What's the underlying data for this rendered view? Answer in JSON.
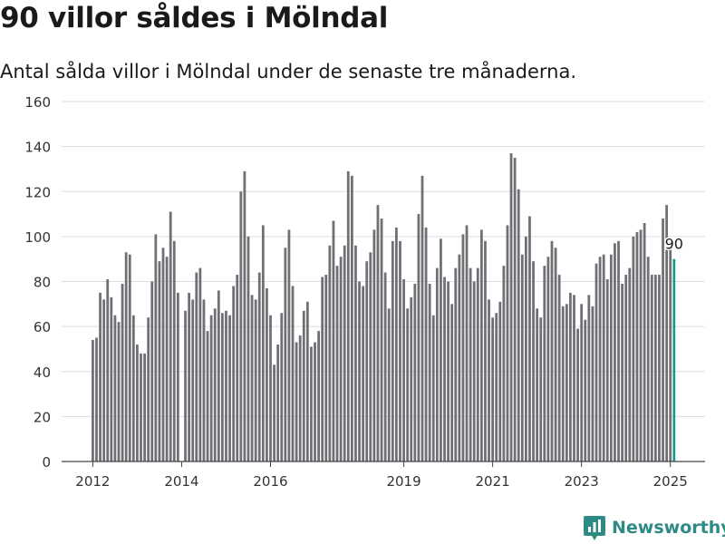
{
  "header": {
    "title": "90 villor såldes i Mölndal",
    "subtitle": "Antal sålda villor i Mölndal under de senaste tre månaderna."
  },
  "brand": {
    "name": "Newsworthy",
    "color": "#2d8a85",
    "icon": "newsworthy-logo-icon"
  },
  "colors": {
    "bar": "#6f6f76",
    "highlight": "#1e9a8d",
    "grid": "#dddddd",
    "axis": "#444444"
  },
  "chart_data": {
    "type": "bar",
    "title": "90 villor såldes i Mölndal",
    "subtitle": "Antal sålda villor i Mölndal under de senaste tre månaderna.",
    "xlabel": "",
    "ylabel": "",
    "ylim": [
      0,
      160
    ],
    "yticks": [
      0,
      20,
      40,
      60,
      80,
      100,
      120,
      140,
      160
    ],
    "xticks": [
      "2012",
      "2014",
      "2016",
      "2019",
      "2021",
      "2023",
      "2025"
    ],
    "grid": true,
    "x_start": "2012-01",
    "x_end": "2025-01",
    "highlight_label": "90",
    "values": [
      54,
      55,
      75,
      72,
      81,
      73,
      65,
      62,
      79,
      93,
      92,
      65,
      52,
      48,
      48,
      64,
      80,
      101,
      89,
      95,
      91,
      111,
      98,
      75,
      null,
      67,
      75,
      72,
      84,
      86,
      72,
      58,
      65,
      68,
      76,
      66,
      67,
      65,
      78,
      83,
      120,
      129,
      100,
      74,
      72,
      84,
      105,
      77,
      65,
      43,
      52,
      66,
      95,
      103,
      78,
      53,
      56,
      67,
      71,
      51,
      53,
      58,
      82,
      83,
      96,
      107,
      87,
      91,
      96,
      129,
      127,
      96,
      80,
      78,
      89,
      93,
      103,
      114,
      108,
      84,
      68,
      98,
      104,
      98,
      81,
      68,
      73,
      79,
      110,
      127,
      104,
      79,
      65,
      86,
      99,
      82,
      80,
      70,
      86,
      92,
      101,
      105,
      86,
      80,
      86,
      103,
      98,
      72,
      64,
      66,
      71,
      87,
      105,
      137,
      135,
      121,
      92,
      100,
      109,
      89,
      68,
      64,
      87,
      91,
      98,
      95,
      83,
      69,
      70,
      75,
      74,
      59,
      70,
      63,
      74,
      69,
      88,
      91,
      92,
      81,
      92,
      97,
      98,
      79,
      83,
      86,
      100,
      102,
      103,
      106,
      91,
      83,
      83,
      83,
      108,
      114,
      96,
      90
    ]
  }
}
